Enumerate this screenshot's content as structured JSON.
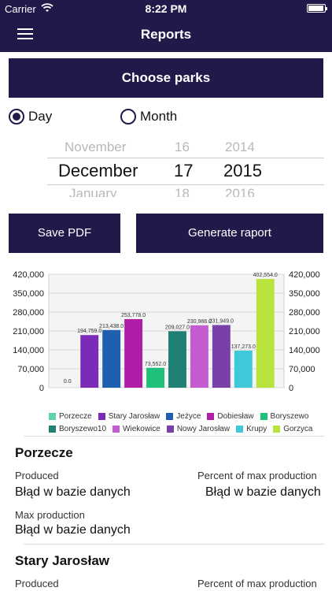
{
  "status": {
    "carrier": "Carrier",
    "time": "8:22 PM"
  },
  "nav": {
    "title": "Reports"
  },
  "choose_parks_label": "Choose parks",
  "radio": {
    "day": "Day",
    "month": "Month",
    "selected": "day"
  },
  "picker": {
    "months": [
      "November",
      "December",
      "January"
    ],
    "days": [
      "16",
      "17",
      "18"
    ],
    "years": [
      "2014",
      "2015",
      "2016"
    ]
  },
  "buttons": {
    "save_pdf": "Save PDF",
    "generate": "Generate raport"
  },
  "chart_data": {
    "type": "bar",
    "categories": [
      "Porzecze",
      "Stary Jarosław",
      "Jeżyce",
      "Dobiesław",
      "Boryszewo",
      "Boryszewo10",
      "Wiekowice",
      "Nowy Jarosław",
      "Krupy",
      "Gorzyca"
    ],
    "values": [
      0.0,
      194759.0,
      213438.0,
      253778.0,
      73552.0,
      209027.0,
      230988.0,
      231949.0,
      137273.0,
      402554.0
    ],
    "value_labels": [
      "0.0",
      "194,759.0",
      "213,438.0",
      "253,778.0",
      "73,552.0",
      "209,027.0",
      "230,988.0",
      "231,949.0",
      "137,273.0",
      "402,554.0"
    ],
    "colors": [
      "#5fd3b0",
      "#7b2bb8",
      "#1f5fb0",
      "#b01ea8",
      "#1fc07a",
      "#1f8074",
      "#c45ccf",
      "#7b3fa8",
      "#3fc8d8",
      "#b8e23c"
    ],
    "y_ticks": [
      "420,000",
      "350,000",
      "280,000",
      "210,000",
      "140,000",
      "70,000",
      "0"
    ],
    "ylim": [
      0,
      420000
    ],
    "grid": true,
    "legend": "bottom"
  },
  "parks": [
    {
      "name": "Porzecze",
      "produced_label": "Produced",
      "produced_value": "Błąd w bazie danych",
      "percent_label": "Percent of max production",
      "percent_value": "Błąd w bazie danych",
      "max_label": "Max production",
      "max_value": "Błąd w bazie danych"
    },
    {
      "name": "Stary Jarosław",
      "produced_label": "Produced",
      "percent_label": "Percent of max production"
    }
  ]
}
